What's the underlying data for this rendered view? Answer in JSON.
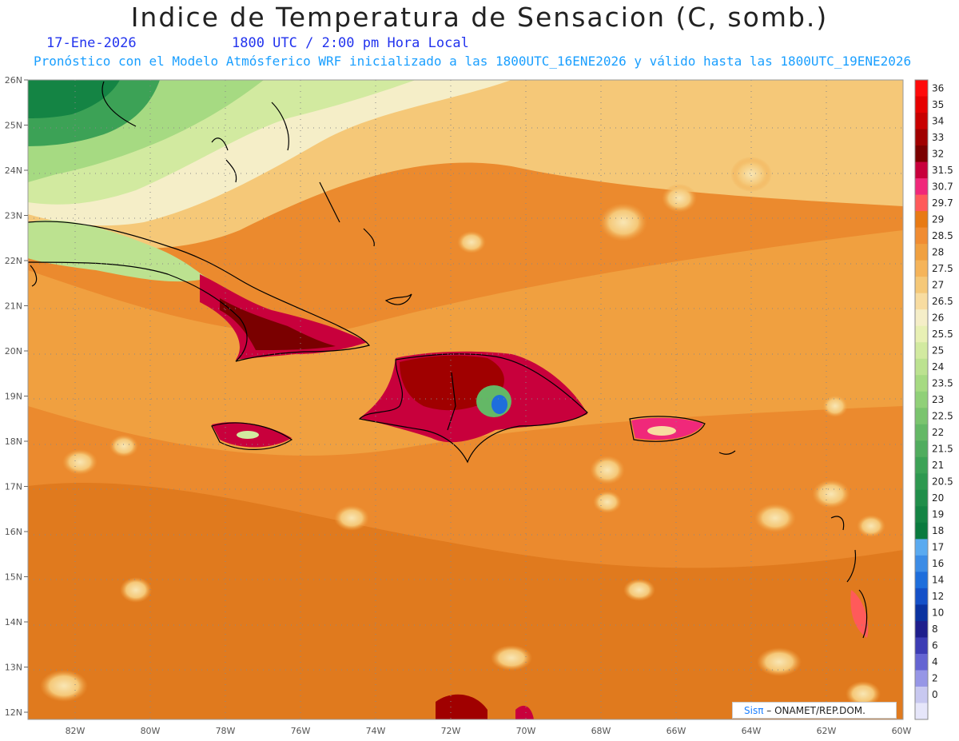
{
  "title": "Indice de Temperatura de Sensacion (C, somb.)",
  "date": "17-Ene-2026",
  "time": "1800 UTC / 2:00 pm Hora Local",
  "subtitle": "Pronóstico con el Modelo Atmósferico WRF inicializado a las 1800UTC_16ENE2026 y válido hasta las  1800UTC_19ENE2026",
  "credit": {
    "logo": "Sisπ",
    "text": "– ONAMET/REP.DOM."
  },
  "lat_labels": [
    "26N",
    "25N",
    "24N",
    "23N",
    "22N",
    "21N",
    "20N",
    "19N",
    "18N",
    "17N",
    "16N",
    "15N",
    "14N",
    "13N",
    "12N"
  ],
  "lon_labels": [
    "82W",
    "80W",
    "78W",
    "76W",
    "74W",
    "72W",
    "70W",
    "68W",
    "66W",
    "64W",
    "62W",
    "60W"
  ],
  "colorbar": {
    "labels": [
      "36",
      "35",
      "34",
      "33",
      "32",
      "31.5",
      "30.7",
      "29.7",
      "29",
      "28.5",
      "28",
      "27.5",
      "27",
      "26.5",
      "26",
      "25.5",
      "25",
      "24",
      "23.5",
      "23",
      "22.5",
      "22",
      "21.5",
      "21",
      "20.5",
      "20",
      "19",
      "18",
      "17",
      "16",
      "14",
      "12",
      "10",
      "8",
      "6",
      "4",
      "2",
      "0"
    ],
    "colors": [
      "#ff0a0a",
      "#e60000",
      "#c80000",
      "#a00000",
      "#7a0000",
      "#c8003c",
      "#f0287a",
      "#ff5a5a",
      "#e87a14",
      "#f08c32",
      "#f0a040",
      "#f5b45a",
      "#f5c878",
      "#f8dca0",
      "#f5eec8",
      "#e8f0b4",
      "#d2eaa0",
      "#bce290",
      "#a6da82",
      "#90d078",
      "#7ac46e",
      "#64b866",
      "#50ac5e",
      "#3ca256",
      "#2e9850",
      "#208e4a",
      "#148444",
      "#0a7a3e",
      "#5aaaf0",
      "#3c8ce6",
      "#1e6edc",
      "#1450c8",
      "#0a32a0",
      "#1e1e8c",
      "#3c3cb4",
      "#6464d2",
      "#9696e6",
      "#c8c8f0",
      "#e6e6fa"
    ]
  }
}
